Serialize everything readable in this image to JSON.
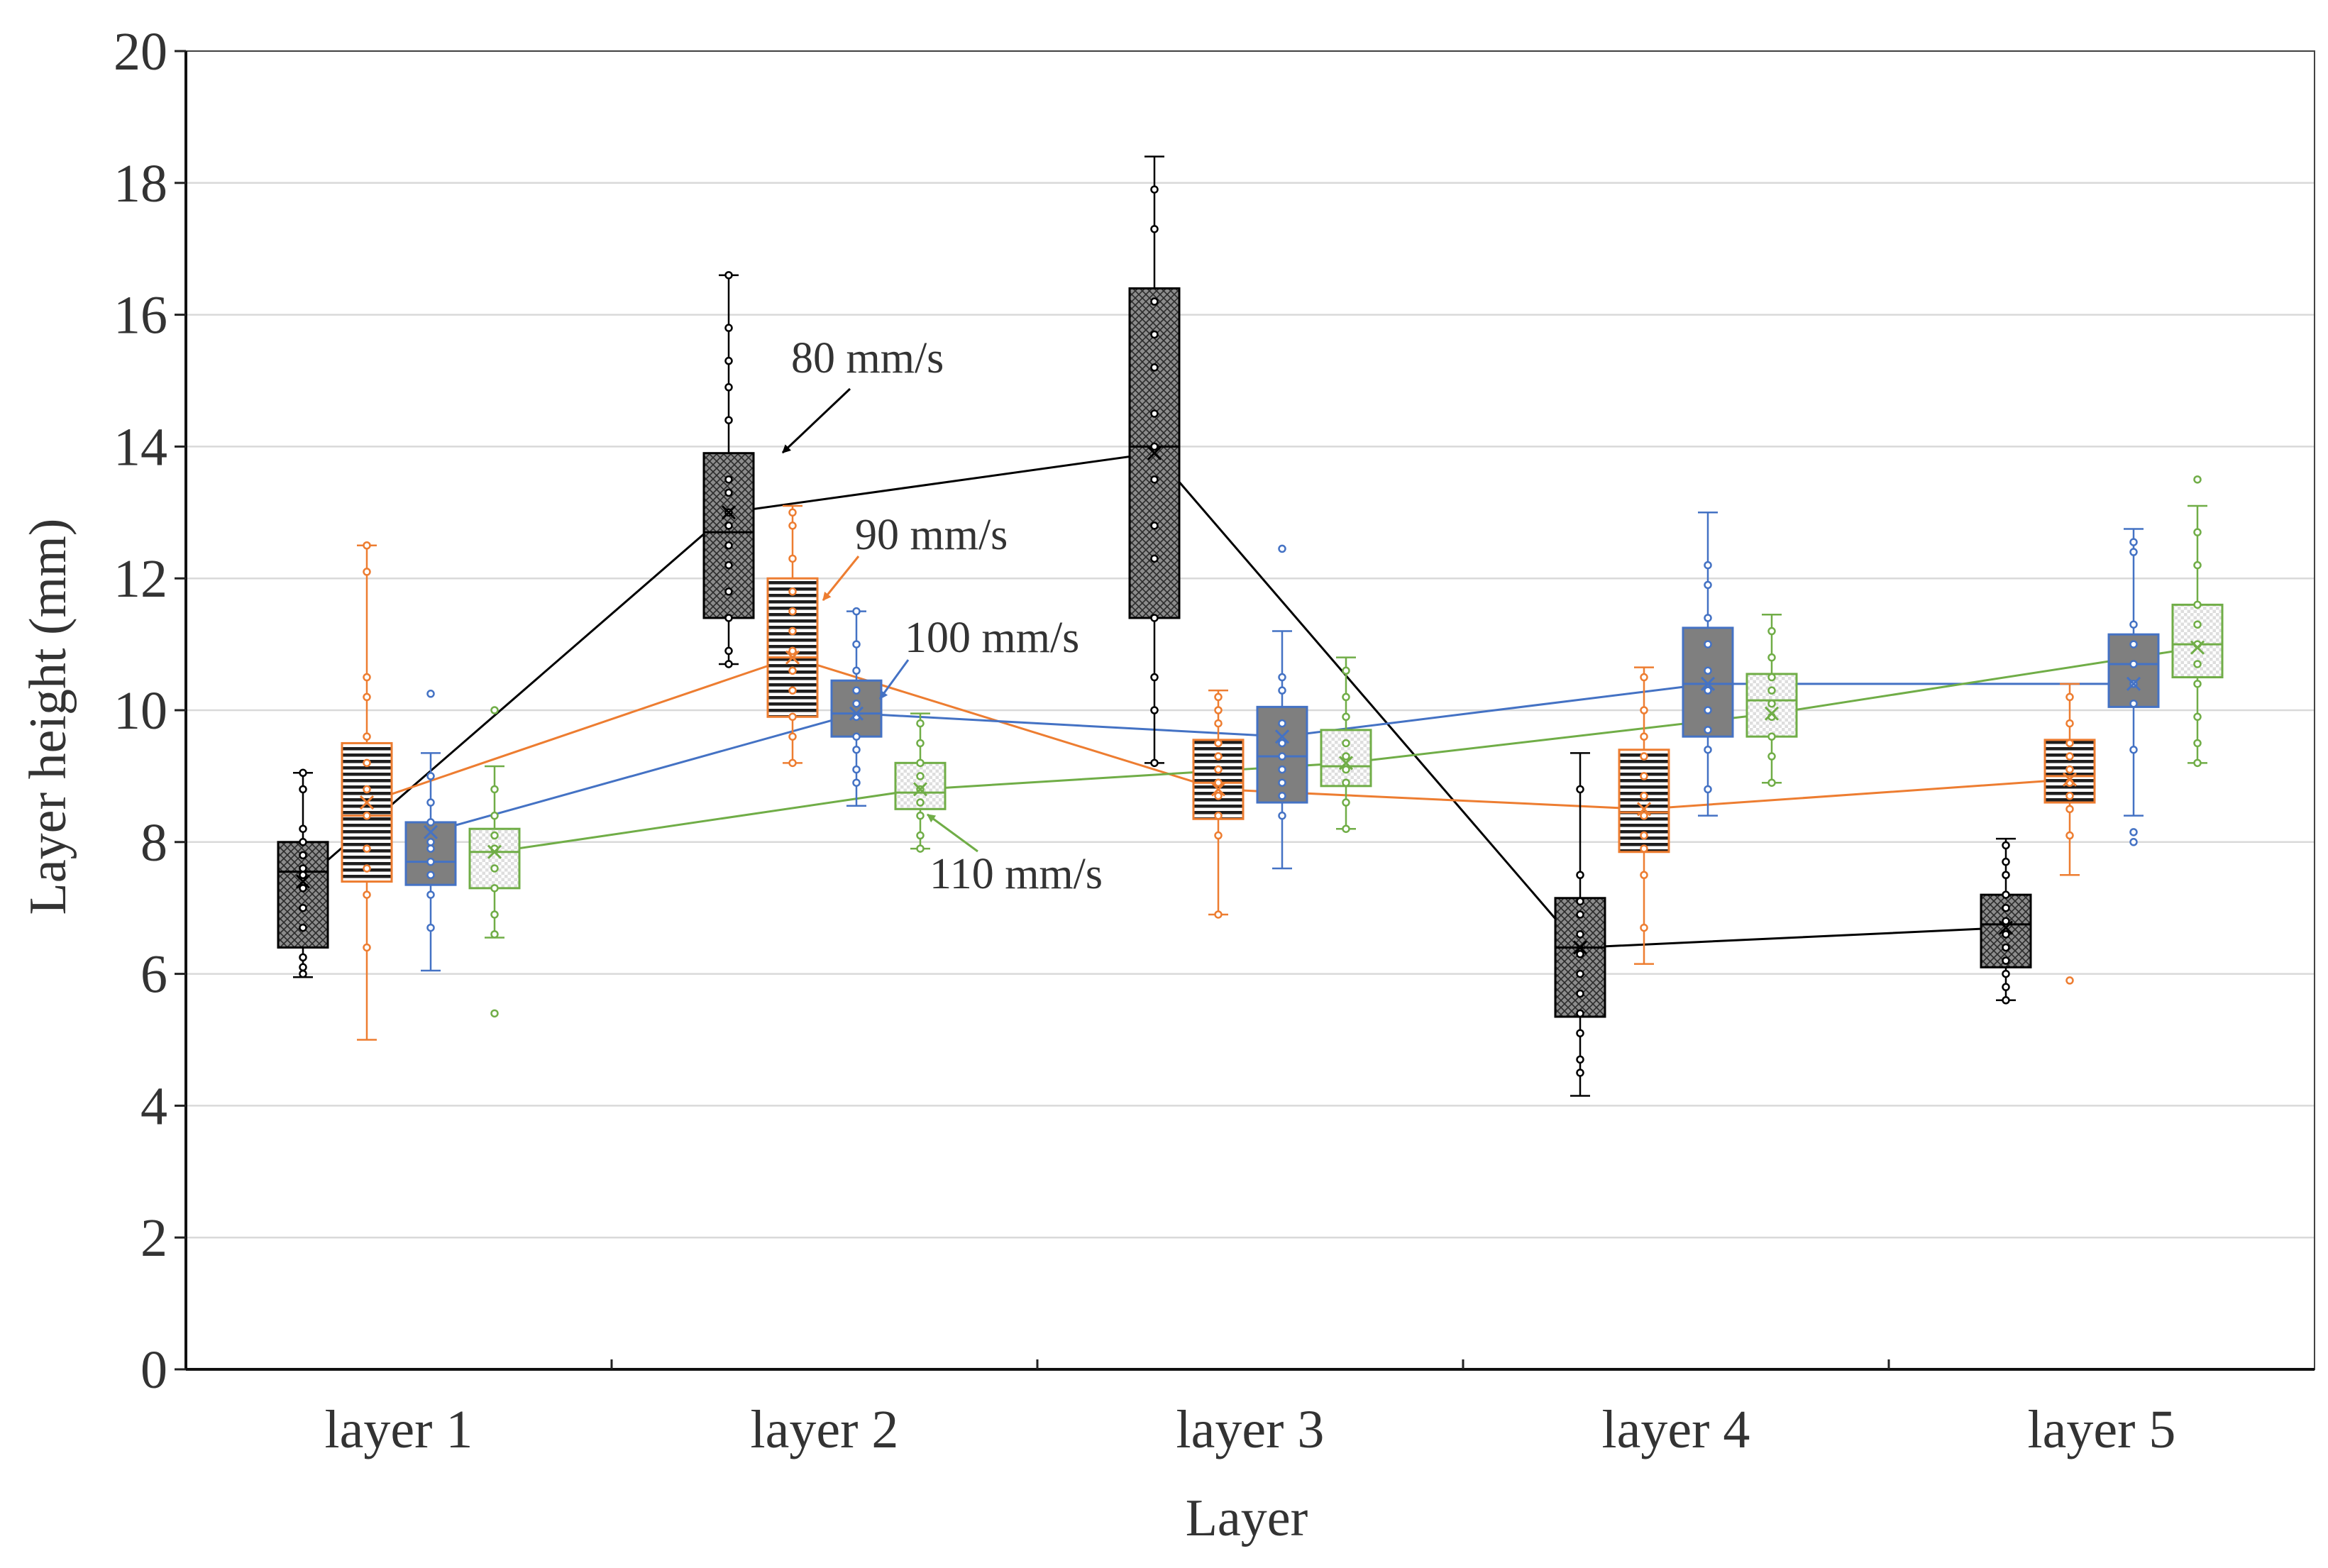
{
  "chart_data": {
    "type": "box",
    "xlabel": "Layer",
    "ylabel": "Layer height (mm)",
    "ylim": [
      0,
      20
    ],
    "yticks": [
      0,
      2,
      4,
      6,
      8,
      10,
      12,
      14,
      16,
      18,
      20
    ],
    "grid": true,
    "categories": [
      "layer 1",
      "layer 2",
      "layer 3",
      "layer 4",
      "layer 5"
    ],
    "series": [
      {
        "name": "80 mm/s",
        "color": "#000000",
        "fill": "#8c8c8c",
        "pattern": "crosshatch",
        "annotation": "80 mm/s",
        "means": [
          7.4,
          13.0,
          13.9,
          6.4,
          6.7
        ],
        "boxes": [
          {
            "min": 5.95,
            "q1": 6.4,
            "median": 7.55,
            "q3": 8.0,
            "max": 9.05,
            "points": [
              6.0,
              6.1,
              6.25,
              6.7,
              7.0,
              7.3,
              7.5,
              7.6,
              7.8,
              8.0,
              8.2,
              8.8,
              9.05
            ]
          },
          {
            "min": 10.7,
            "q1": 11.4,
            "median": 12.7,
            "q3": 13.9,
            "max": 16.6,
            "points": [
              10.7,
              10.9,
              11.4,
              11.8,
              12.2,
              12.5,
              12.8,
              13.0,
              13.3,
              13.5,
              14.4,
              14.9,
              15.3,
              15.8,
              16.6
            ]
          },
          {
            "min": 9.2,
            "q1": 11.4,
            "median": 14.0,
            "q3": 16.4,
            "max": 18.4,
            "points": [
              9.2,
              10.0,
              10.5,
              11.4,
              12.3,
              12.8,
              13.5,
              14.0,
              14.5,
              15.2,
              15.7,
              16.2,
              17.3,
              17.9
            ]
          },
          {
            "min": 4.15,
            "q1": 5.35,
            "median": 6.4,
            "q3": 7.15,
            "max": 9.35,
            "points": [
              4.5,
              4.7,
              5.1,
              5.4,
              5.7,
              6.0,
              6.3,
              6.6,
              6.9,
              7.1,
              7.5,
              8.8
            ]
          },
          {
            "min": 5.6,
            "q1": 6.1,
            "median": 6.75,
            "q3": 7.2,
            "max": 8.05,
            "points": [
              5.6,
              5.8,
              6.0,
              6.2,
              6.4,
              6.6,
              6.8,
              7.0,
              7.2,
              7.5,
              7.7,
              7.95
            ]
          }
        ]
      },
      {
        "name": "90 mm/s",
        "color": "#ed7d31",
        "fill": "#ffffff",
        "pattern": "horizontal-lines",
        "annotation": "90 mm/s",
        "means": [
          8.6,
          10.8,
          8.8,
          8.5,
          8.95
        ],
        "boxes": [
          {
            "min": 5.0,
            "q1": 7.4,
            "median": 8.4,
            "q3": 9.5,
            "max": 12.5,
            "points": [
              6.4,
              7.2,
              7.6,
              7.9,
              8.4,
              8.8,
              9.2,
              9.6,
              10.2,
              10.5,
              12.1,
              12.5
            ]
          },
          {
            "min": 9.2,
            "q1": 9.9,
            "median": 10.8,
            "q3": 12.0,
            "max": 13.1,
            "points": [
              9.2,
              9.6,
              9.9,
              10.3,
              10.6,
              10.9,
              11.2,
              11.5,
              11.8,
              12.3,
              12.8,
              13.0
            ]
          },
          {
            "min": 6.9,
            "q1": 8.35,
            "median": 8.9,
            "q3": 9.55,
            "max": 10.3,
            "points": [
              6.9,
              8.1,
              8.4,
              8.7,
              8.9,
              9.1,
              9.3,
              9.5,
              9.8,
              10.0,
              10.2
            ]
          },
          {
            "min": 6.15,
            "q1": 7.85,
            "median": 8.45,
            "q3": 9.4,
            "max": 10.65,
            "points": [
              6.7,
              7.5,
              7.9,
              8.1,
              8.4,
              8.7,
              9.0,
              9.3,
              9.6,
              10.0,
              10.5
            ]
          },
          {
            "min": 7.5,
            "q1": 8.6,
            "median": 9.0,
            "q3": 9.55,
            "max": 10.4,
            "points": [
              5.9,
              8.1,
              8.5,
              8.7,
              8.9,
              9.1,
              9.3,
              9.5,
              9.8,
              10.2
            ]
          }
        ]
      },
      {
        "name": "100 mm/s",
        "color": "#4472c4",
        "fill": "#7f7f7f",
        "pattern": "solid",
        "annotation": "100 mm/s",
        "means": [
          8.15,
          9.95,
          9.6,
          10.4,
          10.4
        ],
        "boxes": [
          {
            "min": 6.05,
            "q1": 7.35,
            "median": 7.7,
            "q3": 8.3,
            "max": 9.35,
            "points": [
              6.7,
              7.2,
              7.5,
              7.7,
              7.9,
              8.0,
              8.3,
              8.6,
              9.0,
              10.25
            ]
          },
          {
            "min": 8.55,
            "q1": 9.6,
            "median": 9.95,
            "q3": 10.45,
            "max": 11.5,
            "points": [
              8.9,
              9.1,
              9.4,
              9.6,
              9.9,
              10.1,
              10.3,
              10.6,
              11.0,
              11.5
            ]
          },
          {
            "min": 7.6,
            "q1": 8.6,
            "median": 9.3,
            "q3": 10.05,
            "max": 11.2,
            "points": [
              8.4,
              8.7,
              8.9,
              9.1,
              9.3,
              9.5,
              9.8,
              10.3,
              10.5,
              12.45
            ]
          },
          {
            "min": 8.4,
            "q1": 9.6,
            "median": 10.4,
            "q3": 11.25,
            "max": 13.0,
            "points": [
              8.8,
              9.4,
              9.7,
              10.0,
              10.3,
              10.6,
              11.0,
              11.4,
              11.9,
              12.2
            ]
          },
          {
            "min": 8.4,
            "q1": 10.05,
            "median": 10.7,
            "q3": 11.15,
            "max": 12.75,
            "points": [
              8.0,
              8.15,
              9.4,
              10.1,
              10.4,
              10.7,
              11.0,
              11.3,
              12.4,
              12.55
            ]
          }
        ]
      },
      {
        "name": "110 mm/s",
        "color": "#70ad47",
        "fill": "#ffffff",
        "pattern": "dots",
        "annotation": "110 mm/s",
        "means": [
          7.85,
          8.8,
          9.2,
          9.95,
          10.95
        ],
        "boxes": [
          {
            "min": 6.55,
            "q1": 7.3,
            "median": 7.85,
            "q3": 8.2,
            "max": 9.15,
            "points": [
              5.4,
              6.6,
              6.9,
              7.3,
              7.6,
              7.9,
              8.1,
              8.4,
              8.8,
              10.0
            ]
          },
          {
            "min": 7.9,
            "q1": 8.5,
            "median": 8.75,
            "q3": 9.2,
            "max": 9.95,
            "points": [
              7.9,
              8.1,
              8.4,
              8.6,
              8.8,
              9.0,
              9.2,
              9.5,
              9.8
            ]
          },
          {
            "min": 8.2,
            "q1": 8.85,
            "median": 9.15,
            "q3": 9.7,
            "max": 10.8,
            "points": [
              8.2,
              8.6,
              8.9,
              9.1,
              9.3,
              9.5,
              9.9,
              10.2,
              10.6
            ]
          },
          {
            "min": 8.9,
            "q1": 9.6,
            "median": 10.15,
            "q3": 10.55,
            "max": 11.45,
            "points": [
              8.9,
              9.3,
              9.6,
              9.9,
              10.1,
              10.3,
              10.5,
              10.8,
              11.2
            ]
          },
          {
            "min": 9.2,
            "q1": 10.5,
            "median": 11.0,
            "q3": 11.6,
            "max": 13.1,
            "points": [
              9.2,
              9.5,
              9.9,
              10.4,
              10.7,
              11.0,
              11.3,
              11.6,
              12.2,
              12.7,
              13.5
            ]
          }
        ]
      }
    ]
  }
}
